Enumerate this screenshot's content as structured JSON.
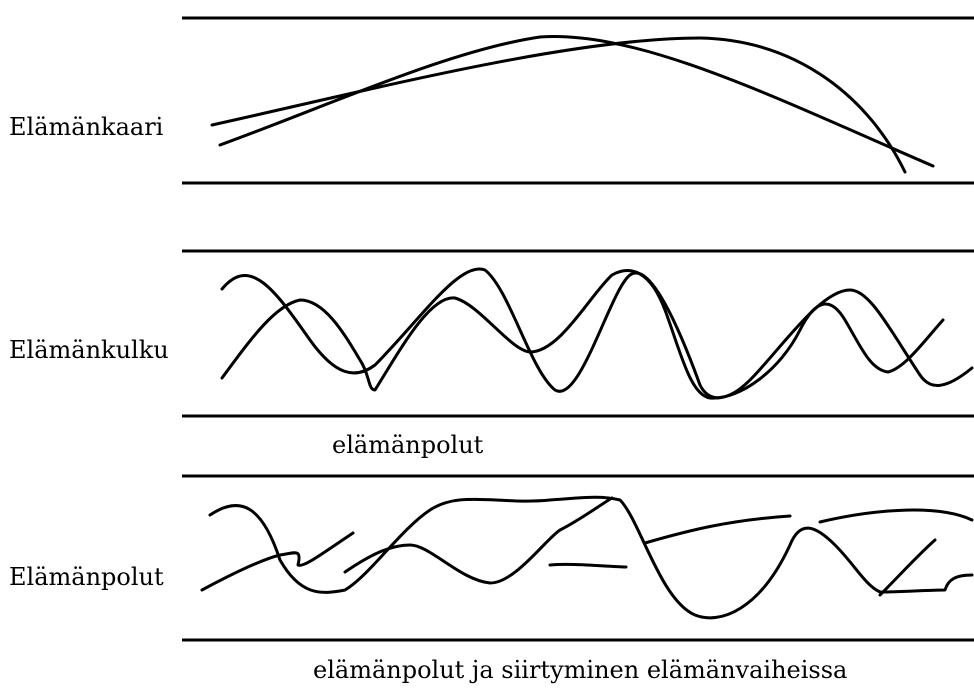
{
  "labels": {
    "elamankaari": "Elämänkaari",
    "elamankulku": "Elämänkulku",
    "elamanpolut": "Elämänpolut"
  },
  "captions": {
    "middle": "elämänpolut",
    "bottom": "elämänpolut ja siirtyminen elämänvaiheissa"
  }
}
